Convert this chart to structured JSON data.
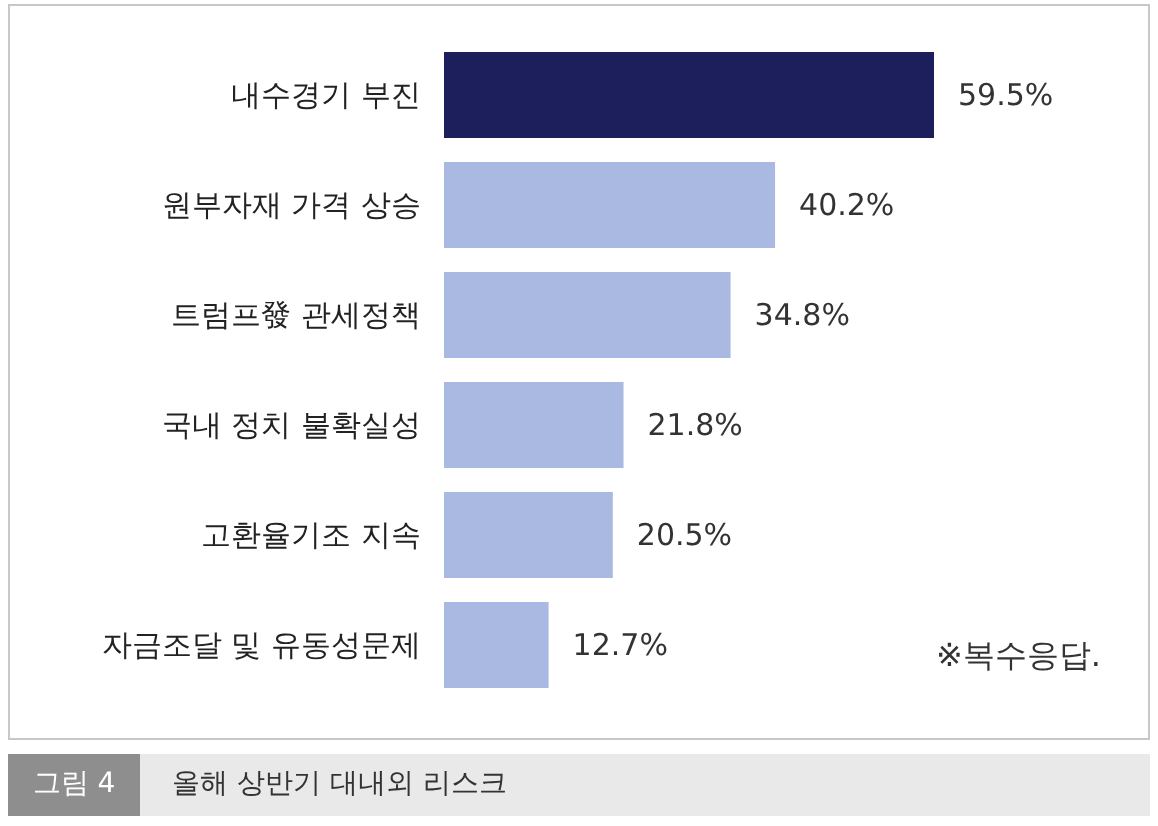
{
  "chart_data": {
    "type": "bar",
    "orientation": "horizontal",
    "categories": [
      "내수경기 부진",
      "원부자재 가격 상승",
      "트럼프發 관세정책",
      "국내 정치 불확실성",
      "고환율기조 지속",
      "자금조달 및 유동성문제"
    ],
    "values": [
      59.5,
      40.2,
      34.8,
      21.8,
      20.5,
      12.7
    ],
    "colors": [
      "#1c1f5c",
      "#aab9e2",
      "#aab9e2",
      "#aab9e2",
      "#aab9e2",
      "#aab9e2"
    ],
    "value_labels": [
      "59.5%",
      "40.2%",
      "34.8%",
      "21.8%",
      "20.5%",
      "12.7%"
    ],
    "annotations": [
      "※복수응답.",
      "그림 4",
      "올해 상반기 대내외 리스크"
    ]
  }
}
